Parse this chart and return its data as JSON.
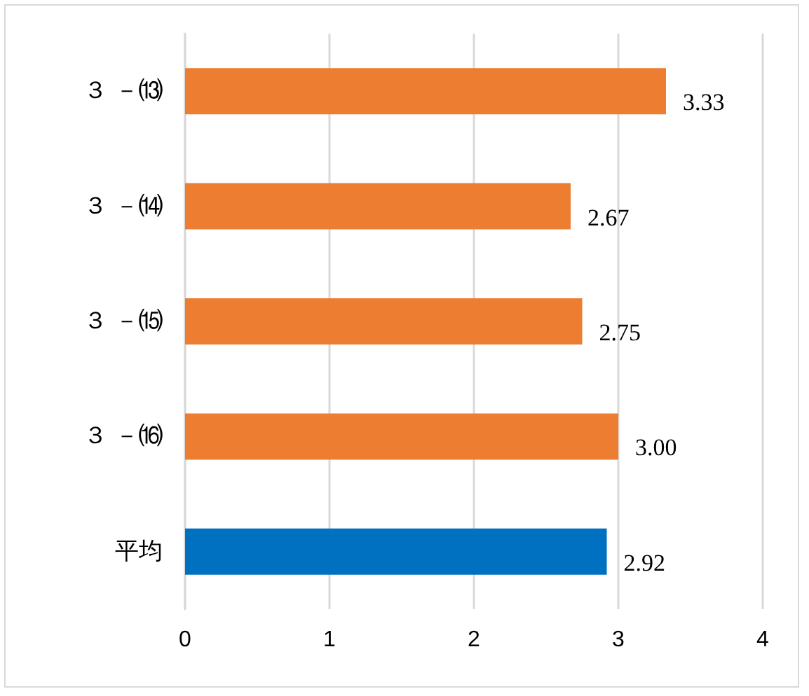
{
  "chart_data": {
    "type": "bar",
    "orientation": "horizontal",
    "categories": [
      "３ －⒀",
      "３ －⒁",
      "３ －⒂",
      "３ －⒃",
      "平均"
    ],
    "values": [
      3.33,
      2.67,
      2.75,
      3.0,
      2.92
    ],
    "colors": [
      "#ed7d31",
      "#ed7d31",
      "#ed7d31",
      "#ed7d31",
      "#0070c0"
    ],
    "value_labels": [
      "3.33",
      "2.67",
      "2.75",
      "3.00",
      "2.92"
    ],
    "xlim": [
      0,
      4
    ],
    "xticks": [
      0,
      1,
      2,
      3,
      4
    ],
    "grid": "x"
  }
}
